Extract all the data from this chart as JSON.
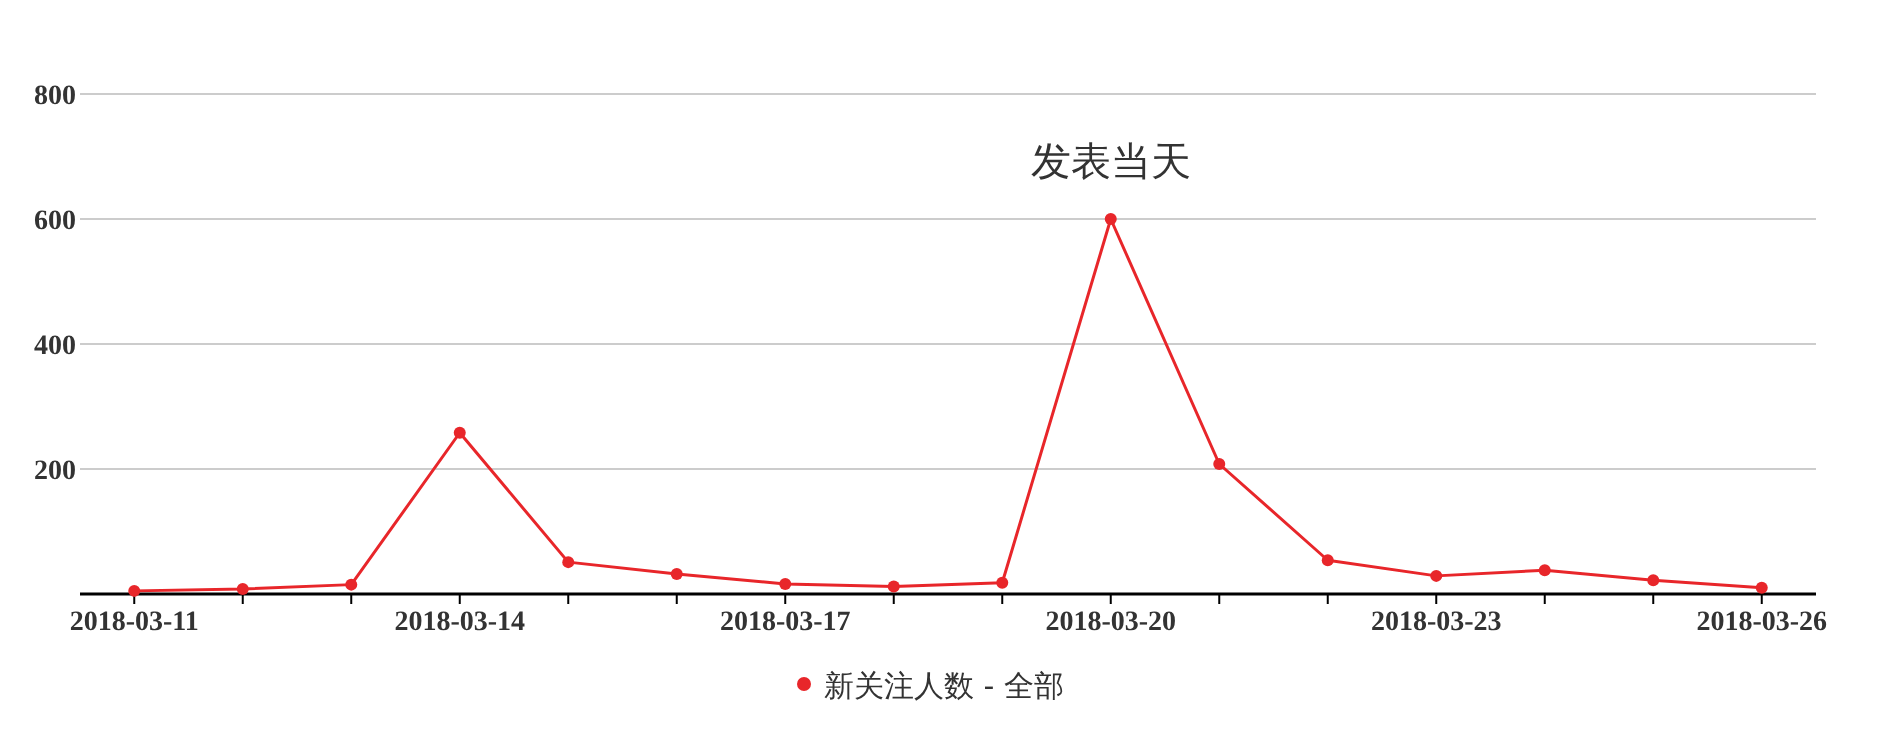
{
  "chart_data": {
    "type": "line",
    "categories": [
      "2018-03-11",
      null,
      null,
      "2018-03-14",
      null,
      null,
      "2018-03-17",
      null,
      null,
      "2018-03-20",
      null,
      null,
      "2018-03-23",
      null,
      null,
      "2018-03-26"
    ],
    "series": [
      {
        "name": "新关注人数 - 全部",
        "color": "#e8262a",
        "values": [
          5,
          8,
          15,
          258,
          51,
          32,
          16,
          12,
          18,
          600,
          208,
          54,
          29,
          38,
          22,
          10
        ]
      }
    ],
    "ylim": [
      0,
      800
    ],
    "yticks": [
      200,
      400,
      600,
      800
    ],
    "grid": "y",
    "legend": "bottom",
    "marker": "circle",
    "line_style": "solid",
    "annotations": [
      {
        "text": "发表当天",
        "x": "2018-03-20",
        "y": 600
      }
    ]
  }
}
